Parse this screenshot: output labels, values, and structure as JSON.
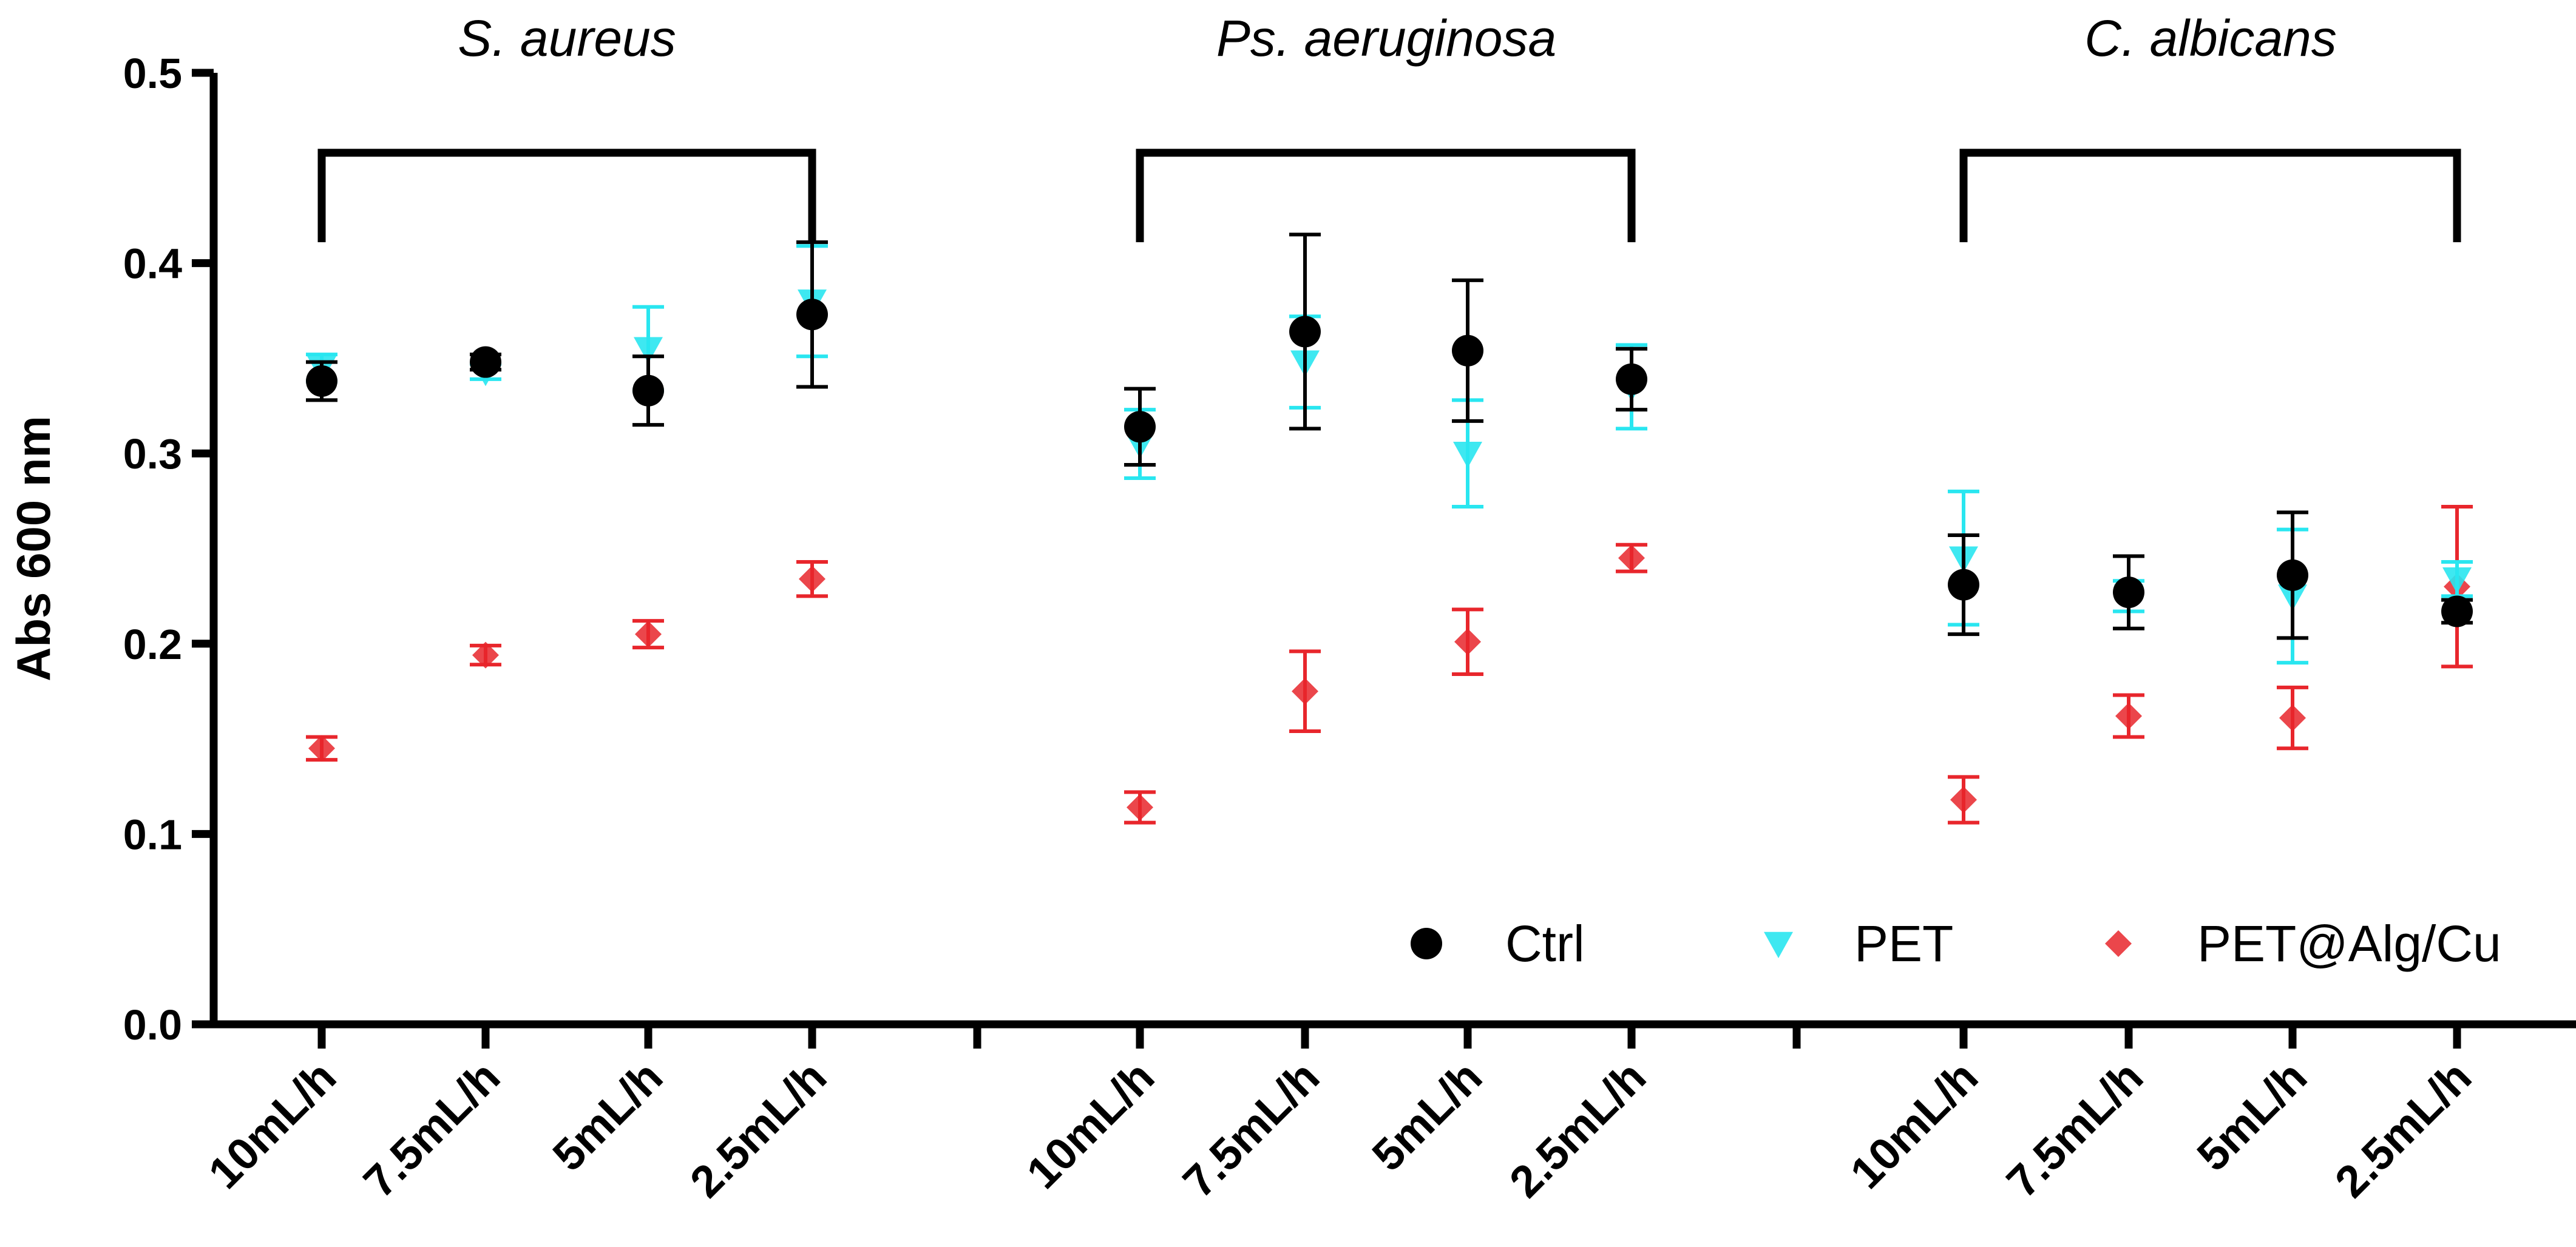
{
  "chart_data": {
    "type": "scatter",
    "ylabel": "Abs 600 nm",
    "ylim": [
      0,
      0.5
    ],
    "yticks": [
      "0.0",
      "0.1",
      "0.2",
      "0.3",
      "0.4",
      "0.5"
    ],
    "groups": [
      {
        "name": "S. aureus",
        "categories": [
          "10mL/h",
          "7.5mL/h",
          "5mL/h",
          "2.5mL/h"
        ]
      },
      {
        "name": "Ps. aeruginosa",
        "categories": [
          "10mL/h",
          "7.5mL/h",
          "5mL/h",
          "2.5mL/h"
        ]
      },
      {
        "name": "C. albicans",
        "categories": [
          "10mL/h",
          "7.5mL/h",
          "5mL/h",
          "2.5mL/h"
        ]
      }
    ],
    "series": [
      {
        "name": "Ctrl",
        "marker": "circle",
        "color": "#000000",
        "values": [
          0.338,
          0.348,
          0.333,
          0.373,
          0.314,
          0.364,
          0.354,
          0.339,
          0.231,
          0.227,
          0.236,
          0.217
        ],
        "errors": [
          0.01,
          0.004,
          0.018,
          0.038,
          0.02,
          0.051,
          0.037,
          0.016,
          0.026,
          0.019,
          0.033,
          0.006
        ]
      },
      {
        "name": "PET",
        "marker": "triangle-down",
        "color": "#29E6F0",
        "values": [
          0.345,
          0.343,
          0.355,
          0.38,
          0.305,
          0.348,
          0.3,
          0.335,
          0.245,
          0.225,
          0.225,
          0.234
        ],
        "errors": [
          0.007,
          0.004,
          0.022,
          0.029,
          0.018,
          0.024,
          0.028,
          0.022,
          0.035,
          0.008,
          0.035,
          0.009
        ]
      },
      {
        "name": "PET@Alg/Cu",
        "marker": "diamond",
        "color": "#E8262C",
        "values": [
          0.145,
          0.194,
          0.205,
          0.234,
          0.114,
          0.175,
          0.201,
          0.245,
          0.118,
          0.162,
          0.161,
          0.23
        ],
        "errors": [
          0.006,
          0.005,
          0.007,
          0.009,
          0.008,
          0.021,
          0.017,
          0.007,
          0.012,
          0.011,
          0.016,
          0.042
        ]
      }
    ],
    "legend_position": "bottom-right",
    "grid": false
  },
  "colors": {
    "axis": "#000000",
    "ctrl": "#000000",
    "pet": "#29E6F0",
    "pet_alg_cu": "#E8262C"
  }
}
